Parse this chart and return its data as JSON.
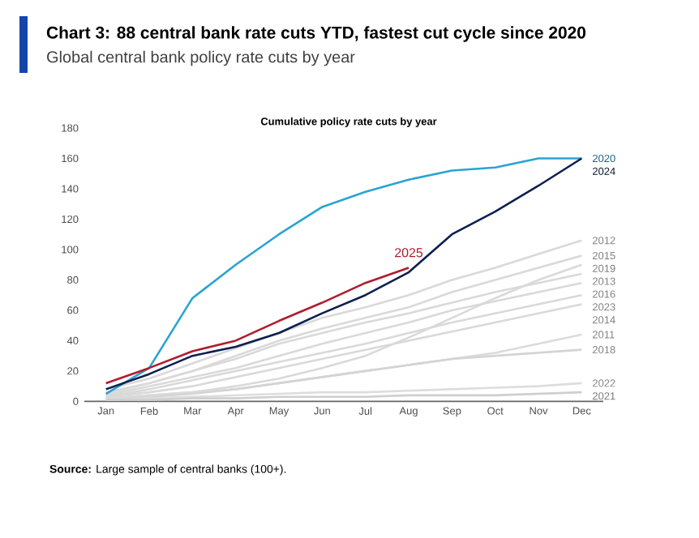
{
  "chart_data": {
    "type": "line",
    "title": "Chart 3: 88 central bank rate cuts YTD, fastest cut cycle since 2020",
    "subtitle": "Global central bank policy rate cuts by year",
    "annotations": [
      "Cumulative policy rate cuts by year",
      "**Source:** Large sample of central banks (100+)."
    ],
    "categories": [
      "Jan",
      "Feb",
      "Mar",
      "Apr",
      "May",
      "Jun",
      "Jul",
      "Aug",
      "Sep",
      "Oct",
      "Nov",
      "Dec"
    ],
    "series": [
      {
        "name": "2012",
        "color": "#d9d9d9",
        "values": [
          8,
          15,
          25,
          35,
          45,
          55,
          62,
          70,
          80,
          88,
          97,
          106
        ]
      },
      {
        "name": "2015",
        "color": "#d9d9d9",
        "values": [
          5,
          12,
          20,
          30,
          40,
          48,
          55,
          62,
          72,
          80,
          88,
          96
        ]
      },
      {
        "name": "2019",
        "color": "#d9d9d9",
        "values": [
          2,
          4,
          6,
          10,
          15,
          22,
          30,
          42,
          55,
          68,
          80,
          90
        ]
      },
      {
        "name": "2013",
        "color": "#d9d9d9",
        "values": [
          6,
          12,
          20,
          28,
          38,
          45,
          52,
          58,
          65,
          72,
          78,
          84
        ]
      },
      {
        "name": "2016",
        "color": "#d9d9d9",
        "values": [
          4,
          10,
          16,
          22,
          30,
          38,
          45,
          52,
          60,
          66,
          72,
          78
        ]
      },
      {
        "name": "2023",
        "color": "#d9d9d9",
        "values": [
          3,
          8,
          14,
          20,
          26,
          32,
          38,
          45,
          52,
          58,
          64,
          70
        ]
      },
      {
        "name": "2014",
        "color": "#d9d9d9",
        "values": [
          3,
          6,
          10,
          16,
          22,
          28,
          34,
          40,
          46,
          52,
          58,
          64
        ]
      },
      {
        "name": "2011",
        "color": "#dbdbdb",
        "values": [
          2,
          4,
          6,
          8,
          12,
          16,
          20,
          24,
          28,
          32,
          38,
          44
        ]
      },
      {
        "name": "2018",
        "color": "#d4d4d4",
        "values": [
          1,
          3,
          5,
          8,
          12,
          16,
          20,
          24,
          28,
          30,
          32,
          34
        ]
      },
      {
        "name": "2022",
        "color": "#dddddd",
        "values": [
          1,
          2,
          3,
          4,
          5,
          6,
          6,
          7,
          8,
          9,
          10,
          12
        ]
      },
      {
        "name": "2021",
        "color": "#cfcfcf",
        "values": [
          1,
          1,
          2,
          2,
          3,
          3,
          3,
          4,
          4,
          4,
          5,
          6
        ]
      },
      {
        "name": "2020",
        "color": "#29a3d4",
        "values": [
          5,
          22,
          68,
          90,
          110,
          128,
          138,
          146,
          152,
          154,
          160,
          160
        ]
      },
      {
        "name": "2024",
        "color": "#0d1f4f",
        "values": [
          8,
          18,
          30,
          36,
          45,
          58,
          70,
          85,
          110,
          125,
          142,
          160
        ]
      },
      {
        "name": "2025",
        "color": "#b01c2e",
        "values": [
          12,
          22,
          33,
          40,
          53,
          65,
          78,
          88,
          null,
          null,
          null,
          null
        ]
      }
    ],
    "ylim": [
      0,
      180
    ],
    "yticks": [
      0,
      20,
      40,
      60,
      80,
      100,
      120,
      140,
      160,
      180
    ],
    "grid": false,
    "marker": "none",
    "line_style": "solid"
  }
}
